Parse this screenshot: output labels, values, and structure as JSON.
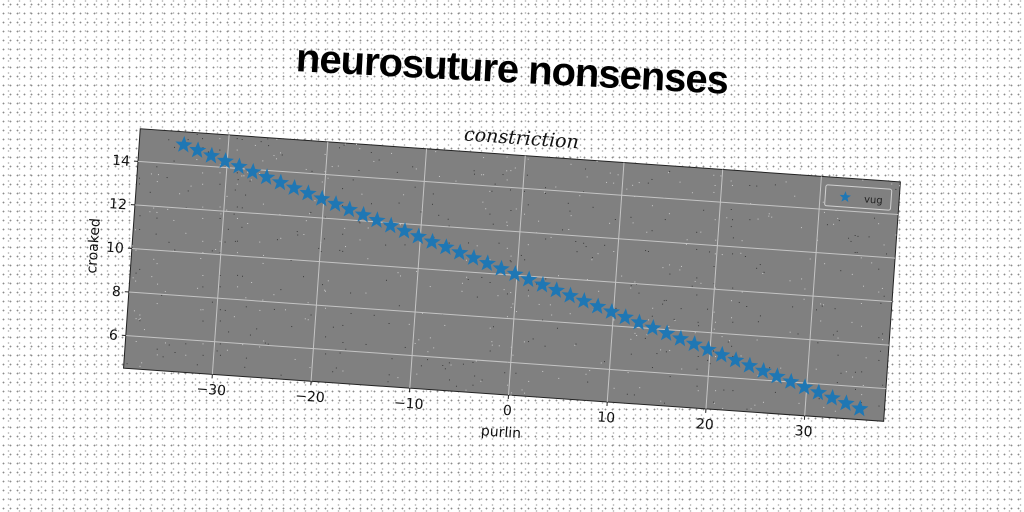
{
  "page_title": "neurosuture nonsenses",
  "chart_data": {
    "type": "scatter",
    "title": "constriction",
    "xlabel": "purlin",
    "ylabel": "croaked",
    "xlim": [
      -39,
      38
    ],
    "ylim": [
      4.5,
      15.5
    ],
    "xticks": [
      -30,
      -20,
      -10,
      0,
      10,
      20,
      30
    ],
    "yticks": [
      6,
      8,
      10,
      12,
      14
    ],
    "xtick_labels": [
      "−30",
      "−20",
      "−10",
      "0",
      "10",
      "20",
      "30"
    ],
    "ytick_labels": [
      "6",
      "8",
      "10",
      "12",
      "14"
    ],
    "grid": true,
    "legend_position": "top-right",
    "series": [
      {
        "name": "vug",
        "color": "#1f77b4",
        "marker": "star",
        "x_start": -34.5,
        "x_end": 35.5,
        "count": 50,
        "y_start": 14.9,
        "y_end": 5.0
      }
    ]
  }
}
